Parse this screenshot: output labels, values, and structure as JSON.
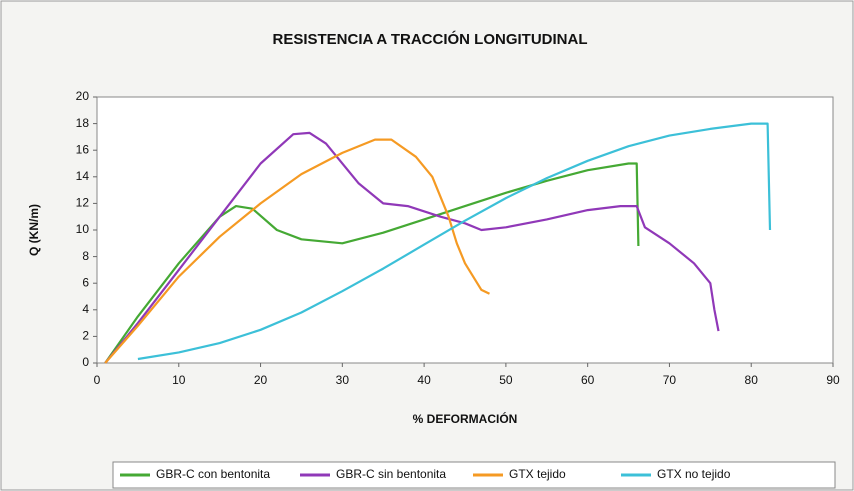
{
  "chart_data": {
    "type": "line",
    "title": "RESISTENCIA A TRACCIÓN LONGITUDINAL",
    "xlabel": "% DEFORMACIÓN",
    "ylabel": "Q (KN/m)",
    "xlim": [
      0,
      90
    ],
    "xticks": [
      0,
      10,
      20,
      30,
      40,
      50,
      60,
      70,
      80,
      90
    ],
    "ylim": [
      0,
      20
    ],
    "yticks": [
      0,
      2,
      4,
      6,
      8,
      10,
      12,
      14,
      16,
      18,
      20
    ],
    "grid": false,
    "legend": "bottom",
    "series": [
      {
        "name": "GBR-C con bentonita",
        "color": "#45a934",
        "x": [
          1,
          5,
          10,
          15,
          17,
          19,
          22,
          25,
          30,
          35,
          40,
          45,
          50,
          55,
          60,
          65,
          66,
          66.2
        ],
        "values": [
          0,
          3.5,
          7.5,
          11,
          11.8,
          11.6,
          10,
          9.3,
          9,
          9.8,
          10.8,
          11.8,
          12.8,
          13.7,
          14.5,
          15,
          15,
          8.8
        ]
      },
      {
        "name": "GBR-C sin bentonita",
        "color": "#9038b8",
        "x": [
          1,
          5,
          10,
          15,
          20,
          24,
          26,
          28,
          32,
          35,
          38,
          42,
          45,
          47,
          50,
          55,
          60,
          64,
          66,
          67,
          70,
          73,
          75,
          75.5,
          76
        ],
        "values": [
          0,
          3,
          7,
          11,
          15,
          17.2,
          17.3,
          16.5,
          13.5,
          12,
          11.8,
          11,
          10.5,
          10,
          10.2,
          10.8,
          11.5,
          11.8,
          11.8,
          10.2,
          9,
          7.5,
          6,
          4,
          2.4
        ]
      },
      {
        "name": "GTX tejido",
        "color": "#f59a23",
        "x": [
          1,
          5,
          10,
          15,
          20,
          25,
          30,
          34,
          36,
          39,
          41,
          43,
          44,
          45,
          47,
          48
        ],
        "values": [
          0,
          2.8,
          6.5,
          9.5,
          12,
          14.2,
          15.8,
          16.8,
          16.8,
          15.5,
          14,
          11,
          9,
          7.5,
          5.5,
          5.2
        ]
      },
      {
        "name": "GTX no tejido",
        "color": "#3cc0d8",
        "x": [
          5,
          10,
          15,
          20,
          25,
          30,
          35,
          40,
          45,
          50,
          55,
          60,
          65,
          70,
          75,
          80,
          82,
          82.3
        ],
        "values": [
          0.3,
          0.8,
          1.5,
          2.5,
          3.8,
          5.4,
          7.1,
          8.9,
          10.7,
          12.4,
          13.9,
          15.2,
          16.3,
          17.1,
          17.6,
          18,
          18,
          10
        ]
      }
    ]
  }
}
